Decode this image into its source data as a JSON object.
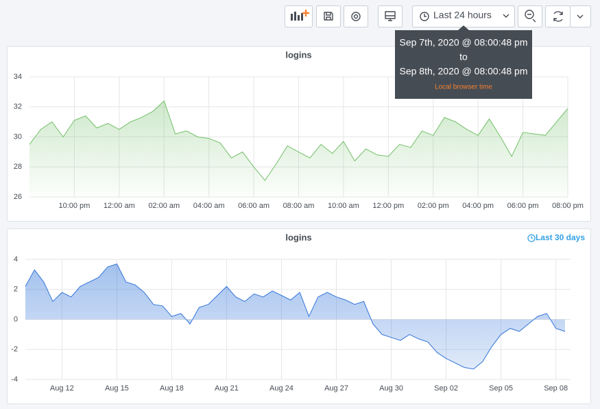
{
  "toolbar": {
    "time_range": "Last 24 hours"
  },
  "tooltip": {
    "from": "Sep 7th, 2020 @ 08:00:48 pm",
    "separator": "to",
    "to": "Sep 8th, 2020 @ 08:00:48 pm",
    "note": "Local browser time"
  },
  "chart_data": [
    {
      "type": "line",
      "title": "logins",
      "fill": true,
      "grid": true,
      "x": [
        0,
        0.5,
        1,
        1.5,
        2,
        2.5,
        3,
        3.5,
        4,
        4.5,
        5,
        5.5,
        6,
        6.5,
        7,
        7.5,
        8,
        8.5,
        9,
        9.5,
        10,
        10.5,
        11,
        11.5,
        12,
        12.5,
        13,
        13.5,
        14,
        14.5,
        15,
        15.5,
        16,
        16.5,
        17,
        17.5,
        18,
        18.5,
        19,
        19.5,
        20,
        20.5,
        21,
        21.5,
        22,
        22.5,
        23,
        23.5,
        24
      ],
      "series": [
        {
          "color": "#73bf69",
          "values": [
            29.5,
            30.5,
            31.0,
            30.0,
            31.1,
            31.4,
            30.6,
            30.9,
            30.5,
            31.0,
            31.3,
            31.7,
            32.4,
            30.2,
            30.4,
            30.0,
            29.9,
            29.6,
            28.6,
            29.0,
            28.0,
            27.1,
            28.2,
            29.4,
            29.0,
            28.6,
            29.5,
            28.9,
            29.7,
            28.4,
            29.2,
            28.8,
            28.7,
            29.5,
            29.3,
            30.4,
            30.1,
            31.3,
            31.0,
            30.5,
            30.1,
            31.2,
            30.0,
            28.7,
            30.3,
            30.2,
            30.1,
            31.0,
            31.9
          ]
        }
      ],
      "xlim": [
        0,
        24
      ],
      "xticks": [
        {
          "value": 2,
          "label": "10:00 pm"
        },
        {
          "value": 4,
          "label": "12:00 am"
        },
        {
          "value": 6,
          "label": "02:00 am"
        },
        {
          "value": 8,
          "label": "04:00 am"
        },
        {
          "value": 10,
          "label": "06:00 am"
        },
        {
          "value": 12,
          "label": "08:00 am"
        },
        {
          "value": 14,
          "label": "10:00 am"
        },
        {
          "value": 16,
          "label": "12:00 pm"
        },
        {
          "value": 18,
          "label": "02:00 pm"
        },
        {
          "value": 20,
          "label": "04:00 pm"
        },
        {
          "value": 22,
          "label": "06:00 pm"
        },
        {
          "value": 24,
          "label": "08:00 pm"
        }
      ],
      "ylim": [
        26,
        34
      ],
      "yticks": [
        26,
        28,
        30,
        32,
        34
      ]
    },
    {
      "type": "line",
      "title": "logins",
      "time_override": "Last 30 days",
      "fill": true,
      "grid": true,
      "x": [
        10,
        10.5,
        11,
        11.5,
        12,
        12.5,
        13,
        13.5,
        14,
        14.5,
        15,
        15.5,
        16,
        16.5,
        17,
        17.5,
        18,
        18.5,
        19,
        19.5,
        20,
        20.5,
        21,
        21.5,
        22,
        22.5,
        23,
        23.5,
        24,
        24.5,
        25,
        25.5,
        26,
        26.5,
        27,
        27.5,
        28,
        28.5,
        29,
        29.5,
        30,
        30.5,
        31,
        31.5,
        32,
        32.5,
        33,
        33.5,
        34,
        34.5,
        35,
        35.5,
        36,
        36.5,
        37,
        37.5,
        38,
        38.5,
        39,
        39.5
      ],
      "series": [
        {
          "color": "#3274d9",
          "values": [
            2.2,
            3.3,
            2.5,
            1.2,
            1.8,
            1.5,
            2.2,
            2.5,
            2.8,
            3.5,
            3.7,
            2.5,
            2.3,
            1.8,
            1.0,
            0.9,
            0.2,
            0.4,
            -0.3,
            0.8,
            1.0,
            1.6,
            2.2,
            1.5,
            1.2,
            1.7,
            1.5,
            1.9,
            1.6,
            1.3,
            1.8,
            0.2,
            1.5,
            1.8,
            1.5,
            1.3,
            1.0,
            1.2,
            -0.3,
            -1.0,
            -1.2,
            -1.4,
            -1.0,
            -1.3,
            -1.5,
            -2.2,
            -2.6,
            -2.9,
            -3.2,
            -3.3,
            -2.8,
            -1.8,
            -1.0,
            -0.6,
            -0.8,
            -0.3,
            0.2,
            0.4,
            -0.6,
            -0.8
          ]
        }
      ],
      "xlim": [
        10,
        39.8
      ],
      "xticks": [
        {
          "value": 12,
          "label": "Aug 12"
        },
        {
          "value": 15,
          "label": "Aug 15"
        },
        {
          "value": 18,
          "label": "Aug 18"
        },
        {
          "value": 21,
          "label": "Aug 21"
        },
        {
          "value": 24,
          "label": "Aug 24"
        },
        {
          "value": 27,
          "label": "Aug 27"
        },
        {
          "value": 30,
          "label": "Aug 30"
        },
        {
          "value": 33,
          "label": "Sep 02"
        },
        {
          "value": 36,
          "label": "Sep 05"
        },
        {
          "value": 39,
          "label": "Sep 08"
        }
      ],
      "ylim": [
        -4,
        4
      ],
      "yticks": [
        -4,
        -2,
        0,
        2,
        4
      ]
    }
  ]
}
